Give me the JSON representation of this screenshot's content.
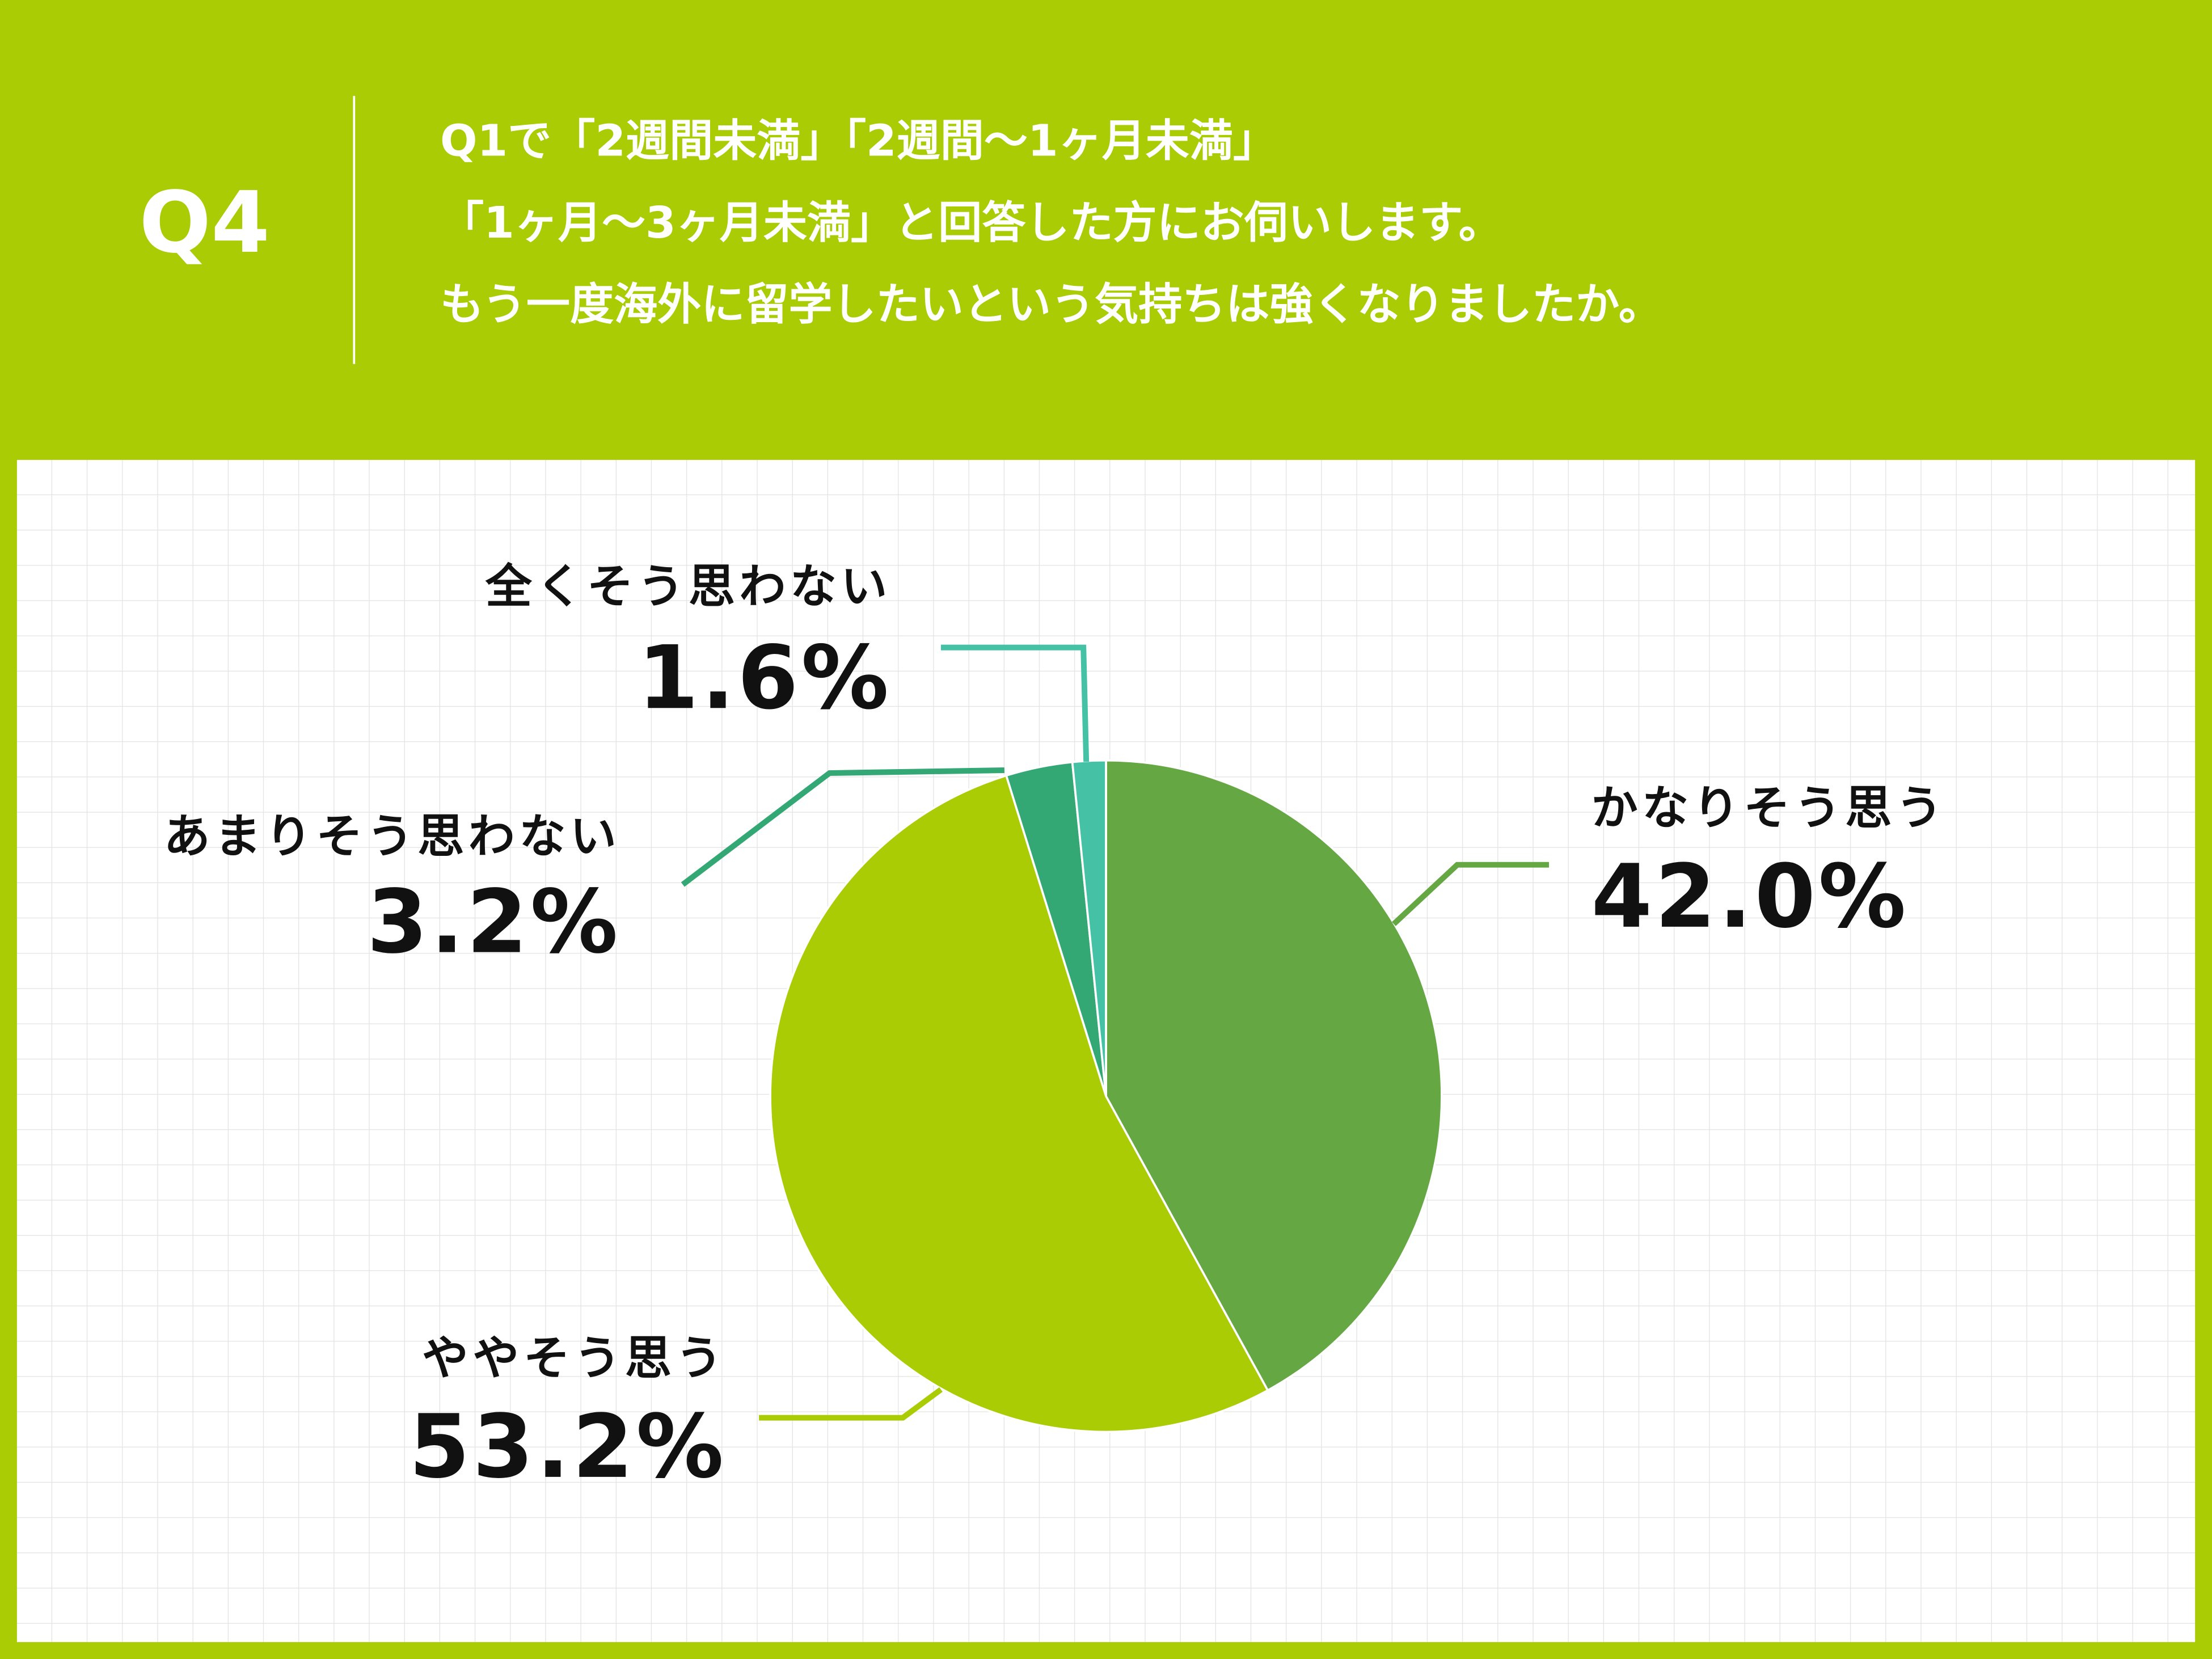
{
  "header": {
    "badge": "Q4",
    "question_lines": [
      "Q1で「2週間未満」「2週間〜1ヶ月未満」",
      "「1ヶ月〜3ヶ月未満」と回答した方にお伺いします。",
      "もう一度海外に留学したいという気持ちは強くなりましたか。"
    ]
  },
  "chart_data": {
    "type": "pie",
    "categories": [
      "かなりそう思う",
      "ややそう思う",
      "あまりそう思わない",
      "全くそう思わない"
    ],
    "values": [
      42.0,
      53.2,
      3.2,
      1.6
    ],
    "value_labels": [
      "42.0%",
      "53.2%",
      "3.2%",
      "1.6%"
    ],
    "colors": [
      "#64a743",
      "#aacc05",
      "#34a874",
      "#45c2a6"
    ]
  }
}
